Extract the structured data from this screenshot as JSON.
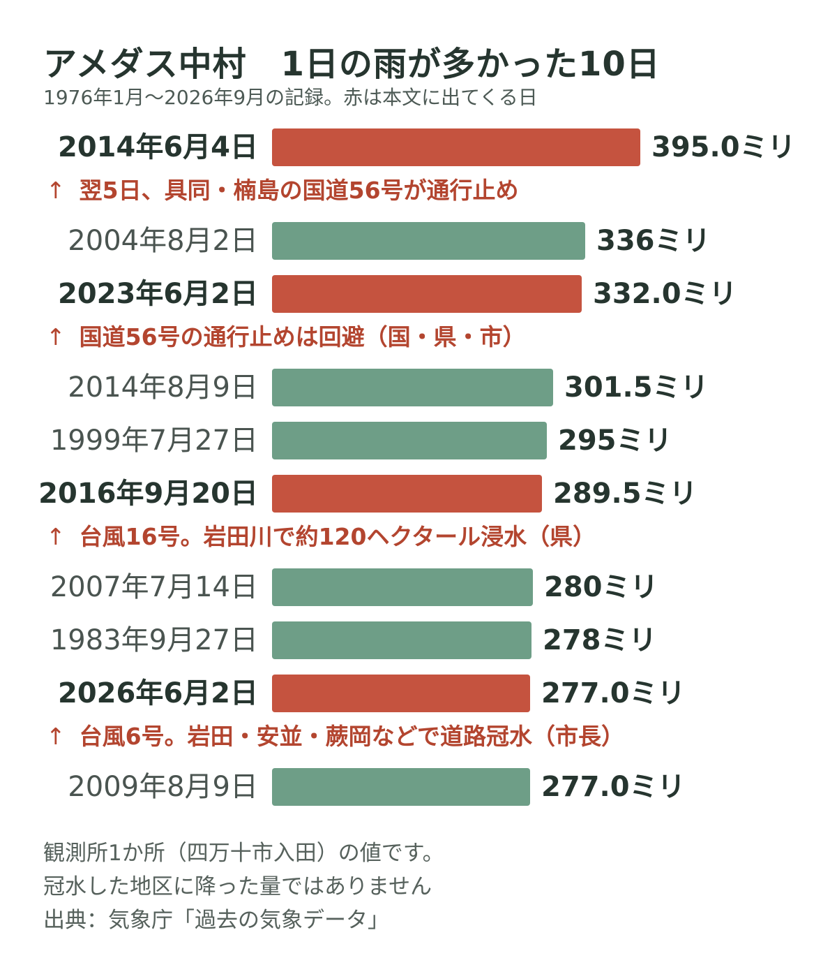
{
  "title": "アメダス中村　1日の雨が多かった10日",
  "subtitle": "1976年1月〜2026年9月の記録。赤は本文に出てくる日",
  "colors": {
    "highlight": "#c5533f",
    "normal": "#6e9e87",
    "note_text": "#b3452f"
  },
  "chart_data": {
    "type": "bar",
    "orientation": "horizontal",
    "unit": "ミリ",
    "categories": [
      "2014年6月4日",
      "2004年8月2日",
      "2023年6月2日",
      "2014年8月9日",
      "1999年7月27日",
      "2016年9月20日",
      "2007年7月14日",
      "1983年9月27日",
      "2026年6月2日",
      "2009年8月9日"
    ],
    "values": [
      395.0,
      336,
      332.0,
      301.5,
      295,
      289.5,
      280,
      278,
      277.0,
      277.0
    ],
    "value_labels": [
      "395.0ミリ",
      "336ミリ",
      "332.0ミリ",
      "301.5ミリ",
      "295ミリ",
      "289.5ミリ",
      "280ミリ",
      "278ミリ",
      "277.0ミリ",
      "277.0ミリ"
    ],
    "highlighted": [
      true,
      false,
      true,
      false,
      false,
      true,
      false,
      false,
      true,
      false
    ],
    "notes": [
      "翌5日、具同・楠島の国道56号が通行止め",
      "",
      "国道56号の通行止めは回避（国・県・市）",
      "",
      "",
      "台風16号。岩田川で約120ヘクタール浸水（県）",
      "",
      "",
      "台風6号。岩田・安並・蕨岡などで道路冠水（市長）",
      ""
    ],
    "note_arrow": "↑"
  },
  "footer": {
    "lines": [
      "観測所1か所（四万十市入田）の値です。",
      "冠水した地区に降った量ではありません",
      "出典：気象庁「過去の気象データ」"
    ]
  }
}
